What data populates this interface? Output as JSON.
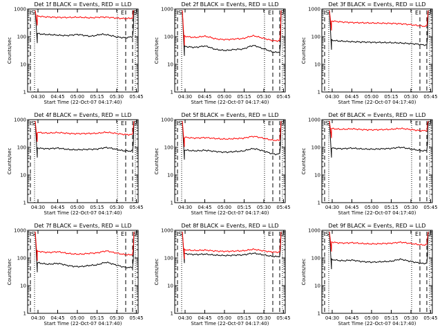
{
  "chart_data": [
    {
      "type": "line",
      "title": "Det 1f BLACK = Events, RED = LLD",
      "xlabel": "Start Time (22-Oct-07 04:17:40)",
      "ylabel": "Counts/sec",
      "yscale": "log",
      "ylim": [
        1,
        1000
      ],
      "x_ticks": [
        "04:30",
        "04:45",
        "05:00",
        "05:15",
        "05:30",
        "05:45"
      ],
      "y_ticks": [
        "1",
        "10",
        "100",
        "1000"
      ],
      "markers": [
        "S",
        "E",
        "S"
      ],
      "series": [
        {
          "color": "#000000",
          "values": [
            130,
            125,
            122,
            120,
            118,
            116,
            114,
            112,
            110,
            110,
            112,
            116,
            120,
            118,
            112,
            108,
            104,
            106,
            112,
            120,
            122,
            118,
            112,
            106,
            98,
            95,
            92,
            92,
            96,
            100
          ]
        },
        {
          "color": "#ff0000",
          "values": [
            560,
            540,
            525,
            515,
            510,
            505,
            500,
            496,
            494,
            494,
            495,
            500,
            505,
            500,
            494,
            488,
            480,
            486,
            495,
            505,
            510,
            505,
            495,
            485,
            470,
            462,
            455,
            452,
            460,
            475
          ]
        }
      ]
    },
    {
      "type": "line",
      "title": "Det 2f BLACK = Events, RED = LLD",
      "xlabel": "Start Time (22-Oct-07 04:17:40)",
      "ylabel": "Counts/sec",
      "yscale": "log",
      "ylim": [
        1,
        1000
      ],
      "x_ticks": [
        "04:30",
        "04:45",
        "05:00",
        "05:15",
        "05:30",
        "05:45"
      ],
      "y_ticks": [
        "1",
        "10",
        "100",
        "1000"
      ],
      "markers": [
        "S",
        "E",
        "S"
      ],
      "series": [
        {
          "color": "#000000",
          "values": [
            45,
            43,
            42,
            41,
            42,
            44,
            46,
            44,
            40,
            36,
            34,
            33,
            32,
            32,
            33,
            34,
            35,
            35,
            36,
            40,
            45,
            48,
            45,
            40,
            37,
            34,
            30,
            28,
            27,
            28
          ]
        },
        {
          "color": "#ff0000",
          "values": [
            105,
            100,
            96,
            94,
            95,
            100,
            104,
            100,
            94,
            86,
            82,
            80,
            79,
            79,
            80,
            82,
            84,
            84,
            86,
            94,
            102,
            108,
            102,
            94,
            88,
            82,
            76,
            72,
            70,
            72
          ]
        }
      ]
    },
    {
      "type": "line",
      "title": "Det 3f BLACK = Events, RED = LLD",
      "xlabel": "Start Time (22-Oct-07 04:17:40)",
      "ylabel": "Counts/sec",
      "yscale": "log",
      "ylim": [
        1,
        1000
      ],
      "x_ticks": [
        "04:30",
        "04:45",
        "05:00",
        "05:15",
        "05:30",
        "05:45"
      ],
      "y_ticks": [
        "1",
        "10",
        "100",
        "1000"
      ],
      "markers": [
        "S",
        "E",
        "S"
      ],
      "series": [
        {
          "color": "#000000",
          "values": [
            75,
            72,
            70,
            69,
            68,
            67,
            66,
            65,
            65,
            64,
            64,
            63,
            63,
            62,
            62,
            62,
            61,
            61,
            61,
            60,
            60,
            59,
            58,
            57,
            56,
            55,
            54,
            52,
            50,
            50
          ]
        },
        {
          "color": "#ff0000",
          "values": [
            370,
            360,
            350,
            340,
            335,
            330,
            325,
            322,
            320,
            318,
            316,
            314,
            312,
            310,
            308,
            306,
            305,
            304,
            302,
            300,
            296,
            292,
            286,
            280,
            272,
            264,
            255,
            246,
            238,
            240
          ]
        }
      ]
    },
    {
      "type": "line",
      "title": "Det 4f BLACK = Events, RED = LLD",
      "xlabel": "Start Time (22-Oct-07 04:17:40)",
      "ylabel": "Counts/sec",
      "yscale": "log",
      "ylim": [
        1,
        1000
      ],
      "x_ticks": [
        "04:30",
        "04:45",
        "05:00",
        "05:15",
        "05:30",
        "05:45"
      ],
      "y_ticks": [
        "1",
        "10",
        "100",
        "1000"
      ],
      "markers": [
        "S",
        "E",
        "S"
      ],
      "series": [
        {
          "color": "#000000",
          "values": [
            95,
            92,
            90,
            89,
            90,
            92,
            94,
            92,
            88,
            85,
            83,
            82,
            82,
            82,
            83,
            84,
            85,
            85,
            86,
            90,
            95,
            98,
            95,
            90,
            85,
            80,
            76,
            74,
            73,
            75
          ]
        },
        {
          "color": "#ff0000",
          "values": [
            350,
            340,
            332,
            328,
            330,
            336,
            342,
            338,
            330,
            322,
            316,
            312,
            312,
            312,
            314,
            316,
            318,
            318,
            320,
            330,
            342,
            350,
            342,
            330,
            318,
            306,
            296,
            290,
            288,
            292
          ]
        }
      ]
    },
    {
      "type": "line",
      "title": "Det 5f BLACK = Events, RED = LLD",
      "xlabel": "Start Time (22-Oct-07 04:17:40)",
      "ylabel": "Counts/sec",
      "yscale": "log",
      "ylim": [
        1,
        1000
      ],
      "x_ticks": [
        "04:30",
        "04:45",
        "05:00",
        "05:15",
        "05:30",
        "05:45"
      ],
      "y_ticks": [
        "1",
        "10",
        "100",
        "1000"
      ],
      "markers": [
        "S",
        "E",
        "S"
      ],
      "series": [
        {
          "color": "#000000",
          "values": [
            80,
            78,
            76,
            75,
            75,
            76,
            78,
            77,
            74,
            72,
            70,
            68,
            67,
            67,
            68,
            70,
            71,
            72,
            74,
            80,
            86,
            90,
            86,
            80,
            74,
            68,
            62,
            58,
            56,
            58
          ]
        },
        {
          "color": "#ff0000",
          "values": [
            230,
            225,
            220,
            217,
            217,
            220,
            224,
            222,
            216,
            210,
            206,
            202,
            200,
            200,
            202,
            206,
            208,
            210,
            214,
            226,
            240,
            248,
            240,
            226,
            214,
            202,
            190,
            182,
            178,
            182
          ]
        }
      ]
    },
    {
      "type": "line",
      "title": "Det 6f BLACK = Events, RED = LLD",
      "xlabel": "Start Time (22-Oct-07 04:17:40)",
      "ylabel": "Counts/sec",
      "yscale": "log",
      "ylim": [
        1,
        1000
      ],
      "x_ticks": [
        "04:30",
        "04:45",
        "05:00",
        "05:15",
        "05:30",
        "05:45"
      ],
      "y_ticks": [
        "1",
        "10",
        "100",
        "1000"
      ],
      "markers": [
        "S",
        "E",
        "S"
      ],
      "series": [
        {
          "color": "#000000",
          "values": [
            95,
            92,
            90,
            89,
            90,
            92,
            94,
            92,
            90,
            88,
            87,
            86,
            86,
            86,
            87,
            88,
            89,
            90,
            91,
            94,
            98,
            100,
            97,
            92,
            88,
            84,
            80,
            77,
            75,
            77
          ]
        },
        {
          "color": "#ff0000",
          "values": [
            480,
            465,
            455,
            448,
            450,
            458,
            466,
            460,
            450,
            440,
            434,
            430,
            430,
            430,
            432,
            436,
            440,
            442,
            446,
            458,
            472,
            480,
            470,
            455,
            442,
            428,
            414,
            404,
            398,
            404
          ]
        }
      ]
    },
    {
      "type": "line",
      "title": "Det 7f BLACK = Events, RED = LLD",
      "xlabel": "Start Time (22-Oct-07 04:17:40)",
      "ylabel": "Counts/sec",
      "yscale": "log",
      "ylim": [
        1,
        1000
      ],
      "x_ticks": [
        "04:30",
        "04:45",
        "05:00",
        "05:15",
        "05:30",
        "05:45"
      ],
      "y_ticks": [
        "1",
        "10",
        "100",
        "1000"
      ],
      "markers": [
        "S",
        "E",
        "S"
      ],
      "series": [
        {
          "color": "#000000",
          "values": [
            68,
            65,
            62,
            60,
            60,
            62,
            64,
            62,
            58,
            54,
            52,
            50,
            49,
            49,
            50,
            52,
            54,
            55,
            56,
            60,
            66,
            70,
            66,
            60,
            56,
            52,
            48,
            46,
            45,
            47
          ]
        },
        {
          "color": "#ff0000",
          "values": [
            175,
            170,
            164,
            160,
            160,
            164,
            168,
            164,
            156,
            148,
            144,
            140,
            138,
            138,
            140,
            144,
            148,
            150,
            152,
            160,
            172,
            180,
            172,
            160,
            152,
            144,
            136,
            132,
            130,
            134
          ]
        }
      ]
    },
    {
      "type": "line",
      "title": "Det 8f BLACK = Events, RED = LLD",
      "xlabel": "Start Time (22-Oct-07 04:17:40)",
      "ylabel": "Counts/sec",
      "yscale": "log",
      "ylim": [
        1,
        1000
      ],
      "x_ticks": [
        "04:30",
        "04:45",
        "05:00",
        "05:15",
        "05:30",
        "05:45"
      ],
      "y_ticks": [
        "1",
        "10",
        "100",
        "1000"
      ],
      "markers": [
        "S",
        "E",
        "S"
      ],
      "series": [
        {
          "color": "#000000",
          "values": [
            145,
            140,
            136,
            134,
            134,
            136,
            138,
            136,
            132,
            128,
            126,
            124,
            123,
            123,
            124,
            126,
            128,
            128,
            130,
            136,
            144,
            148,
            144,
            136,
            130,
            124,
            118,
            114,
            112,
            115
          ]
        },
        {
          "color": "#ff0000",
          "values": [
            200,
            195,
            190,
            187,
            187,
            190,
            193,
            190,
            185,
            180,
            177,
            175,
            174,
            174,
            175,
            177,
            180,
            180,
            182,
            190,
            200,
            206,
            200,
            190,
            182,
            175,
            168,
            164,
            162,
            166
          ]
        }
      ]
    },
    {
      "type": "line",
      "title": "Det 9f BLACK = Events, RED = LLD",
      "xlabel": "Start Time (22-Oct-07 04:17:40)",
      "ylabel": "Counts/sec",
      "yscale": "log",
      "ylim": [
        1,
        1000
      ],
      "x_ticks": [
        "04:30",
        "04:45",
        "05:00",
        "05:15",
        "05:30",
        "05:45"
      ],
      "y_ticks": [
        "1",
        "10",
        "100",
        "1000"
      ],
      "markers": [
        "S",
        "E",
        "S"
      ],
      "series": [
        {
          "color": "#000000",
          "values": [
            88,
            85,
            82,
            80,
            80,
            82,
            84,
            82,
            78,
            75,
            73,
            72,
            71,
            71,
            72,
            73,
            74,
            75,
            76,
            80,
            86,
            90,
            86,
            80,
            76,
            72,
            68,
            65,
            63,
            66
          ]
        },
        {
          "color": "#ff0000",
          "values": [
            380,
            365,
            355,
            348,
            346,
            350,
            356,
            352,
            344,
            336,
            330,
            326,
            324,
            324,
            326,
            330,
            334,
            336,
            340,
            350,
            364,
            372,
            362,
            348,
            336,
            324,
            312,
            302,
            296,
            302
          ]
        }
      ]
    }
  ]
}
